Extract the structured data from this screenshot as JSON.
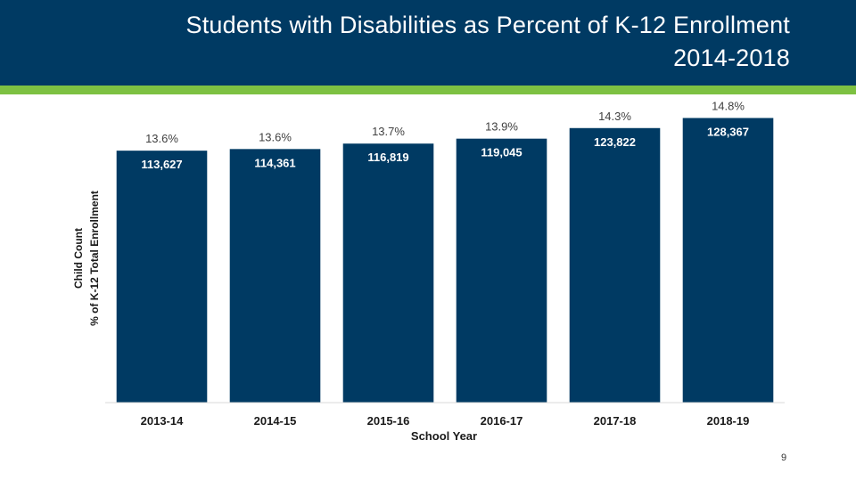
{
  "slide": {
    "title_line1": "Students with Disabilities as Percent of K-12 Enrollment",
    "title_line2": "2014-2018",
    "page_number": "9"
  },
  "colors": {
    "header_bg": "#003a63",
    "accent_green": "#7dc142",
    "bar_fill": "#003a63",
    "value_label": "#ffffff",
    "percent_label": "#404040",
    "axis_text": "#1a1a1a"
  },
  "chart_data": {
    "type": "bar",
    "title": "Students with Disabilities as Percent of K-12 Enrollment 2014-2018",
    "xlabel": "School Year",
    "ylabel_line1": "Child Count",
    "ylabel_line2": "% of K-12 Total Enrollment",
    "categories": [
      "2013-14",
      "2014-15",
      "2015-16",
      "2016-17",
      "2017-18",
      "2018-19"
    ],
    "series": [
      {
        "name": "Child Count",
        "values": [
          113627,
          114361,
          116819,
          119045,
          123822,
          128367
        ],
        "labels": [
          "113,627",
          "114,361",
          "116,819",
          "119,045",
          "123,822",
          "128,367"
        ]
      },
      {
        "name": "% of K-12 Total Enrollment",
        "values": [
          13.6,
          13.6,
          13.7,
          13.9,
          14.3,
          14.8
        ],
        "labels": [
          "13.6%",
          "13.6%",
          "13.7%",
          "13.9%",
          "14.3%",
          "14.8%"
        ]
      }
    ],
    "ylim": [
      0,
      139000
    ],
    "grid": false,
    "legend": "none"
  }
}
